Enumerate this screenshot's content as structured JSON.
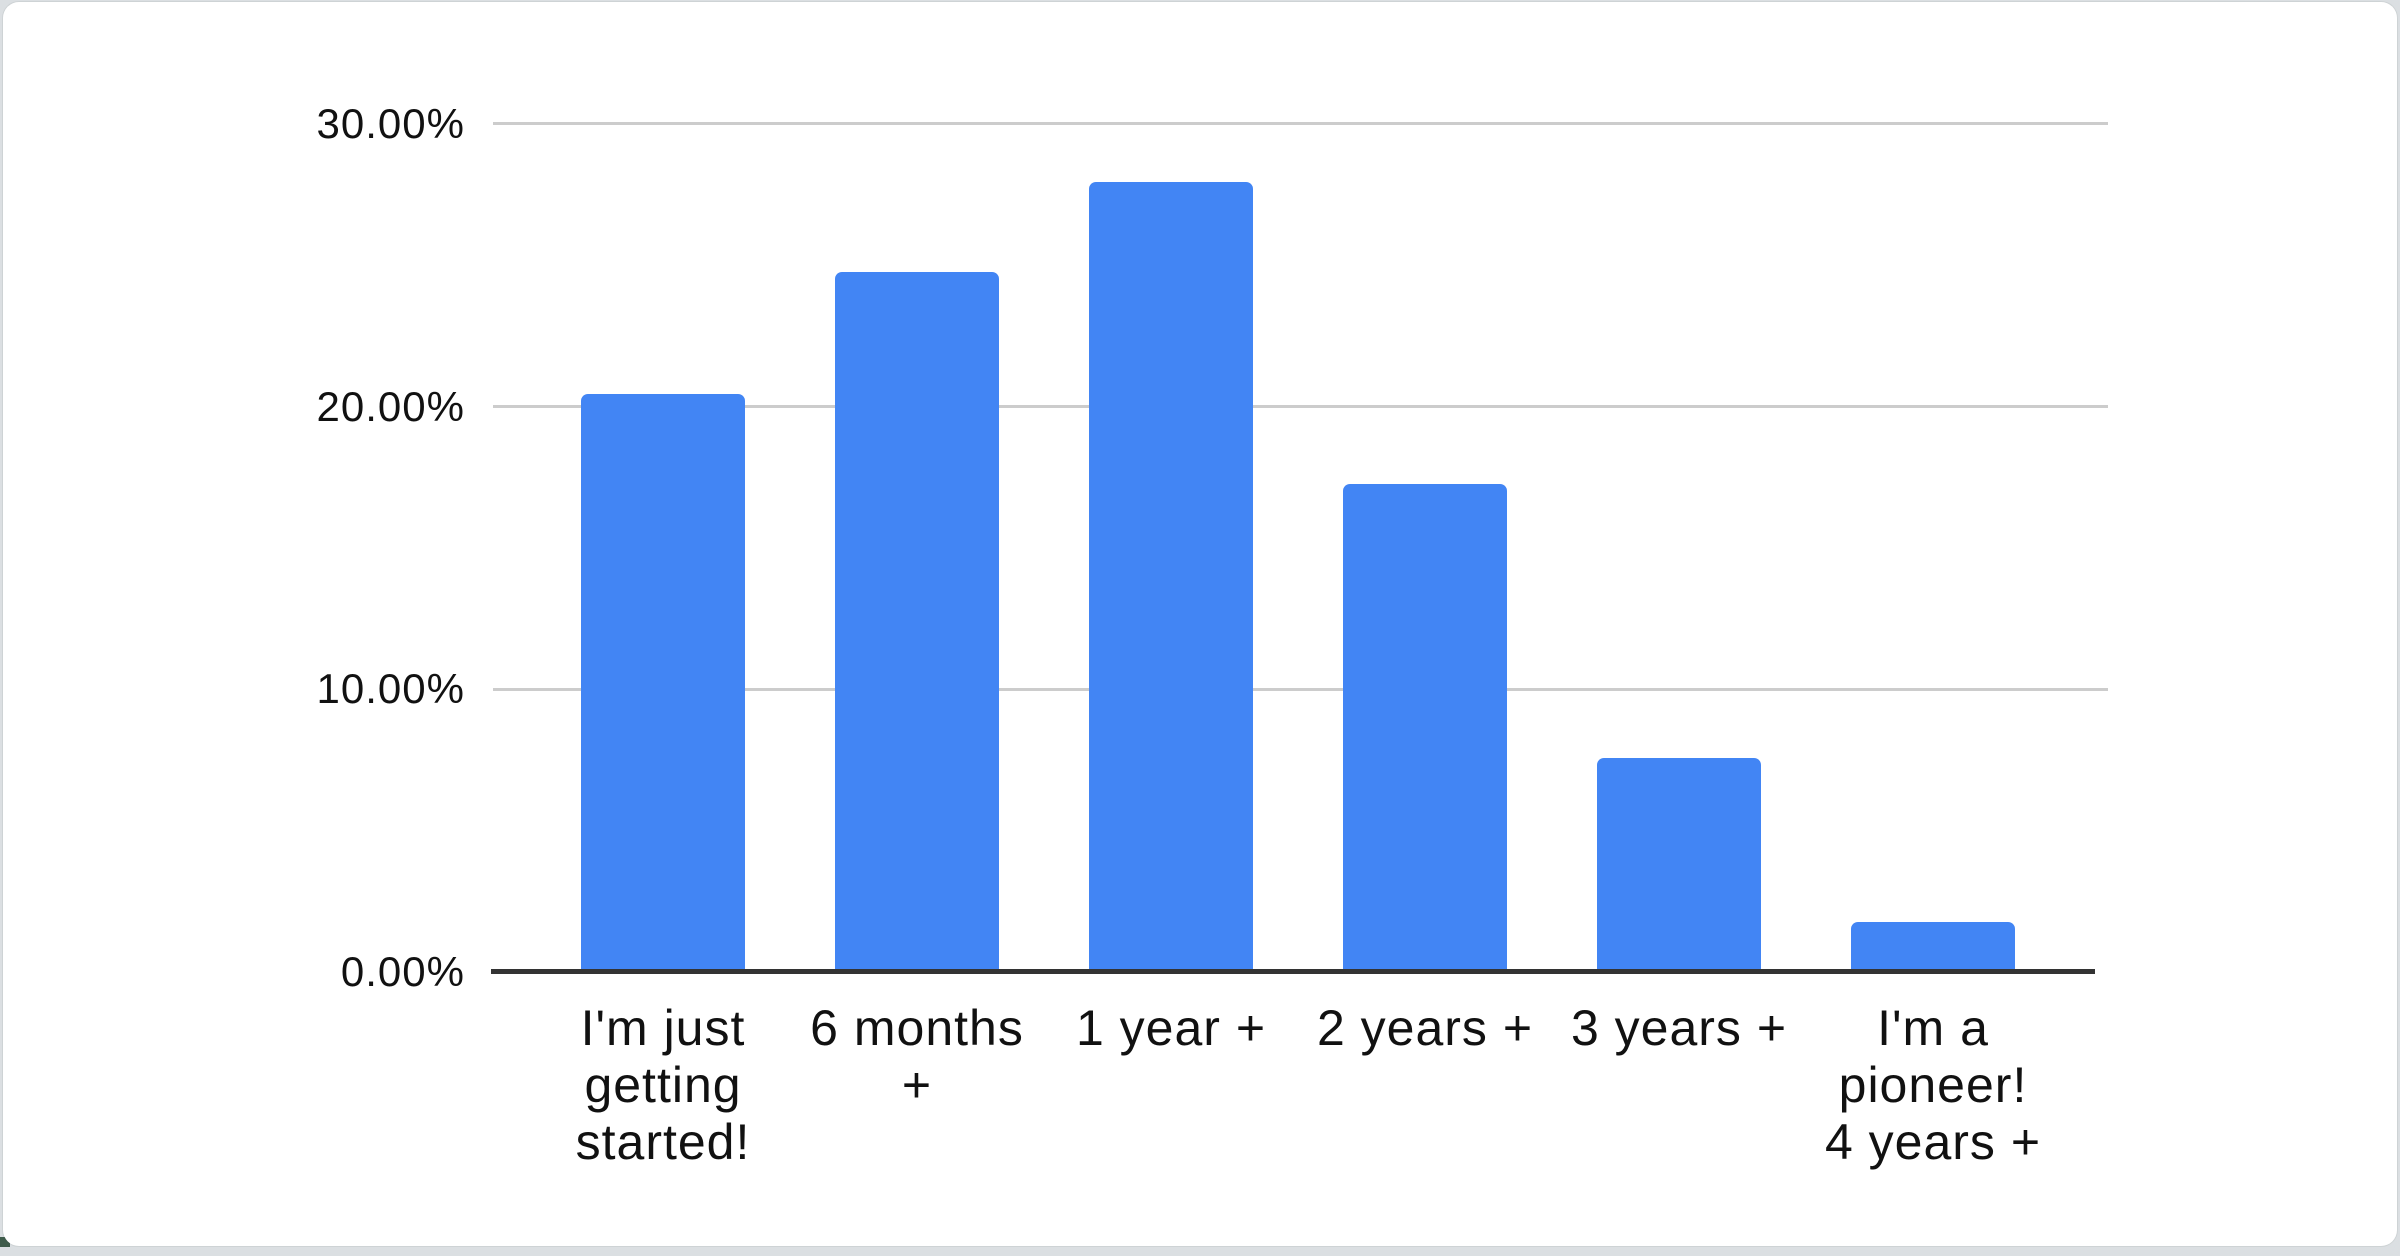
{
  "chart_data": {
    "type": "bar",
    "title": "",
    "xlabel": "",
    "ylabel": "",
    "categories": [
      "I'm just getting started!",
      "6 months +",
      "1 year +",
      "2 years +",
      "3 years +",
      "I'm a pioneer! 4 years +"
    ],
    "category_lines": [
      [
        "I'm just",
        "getting",
        "started!"
      ],
      [
        "6 months",
        "+"
      ],
      [
        "1 year +"
      ],
      [
        "2 years +"
      ],
      [
        "3 years +"
      ],
      [
        "I'm a",
        "pioneer!",
        "4 years +"
      ]
    ],
    "values": [
      20.5,
      24.8,
      28.0,
      17.3,
      7.6,
      1.8
    ],
    "unit": "%",
    "ylim": [
      0,
      30
    ],
    "ytick_values": [
      0,
      10,
      20,
      30
    ],
    "ytick_labels": [
      "0.00%",
      "10.00%",
      "20.00%",
      "30.00%"
    ],
    "grid": true,
    "legend_position": "none",
    "bar_color": "#4285f4",
    "gridline_color": "#cccccc",
    "axis_line_color": "#333333",
    "label_color": "#111111",
    "card_background": "#ffffff",
    "page_background": "#dbdfe2",
    "corner_accent_color": "#3f5c4b"
  }
}
